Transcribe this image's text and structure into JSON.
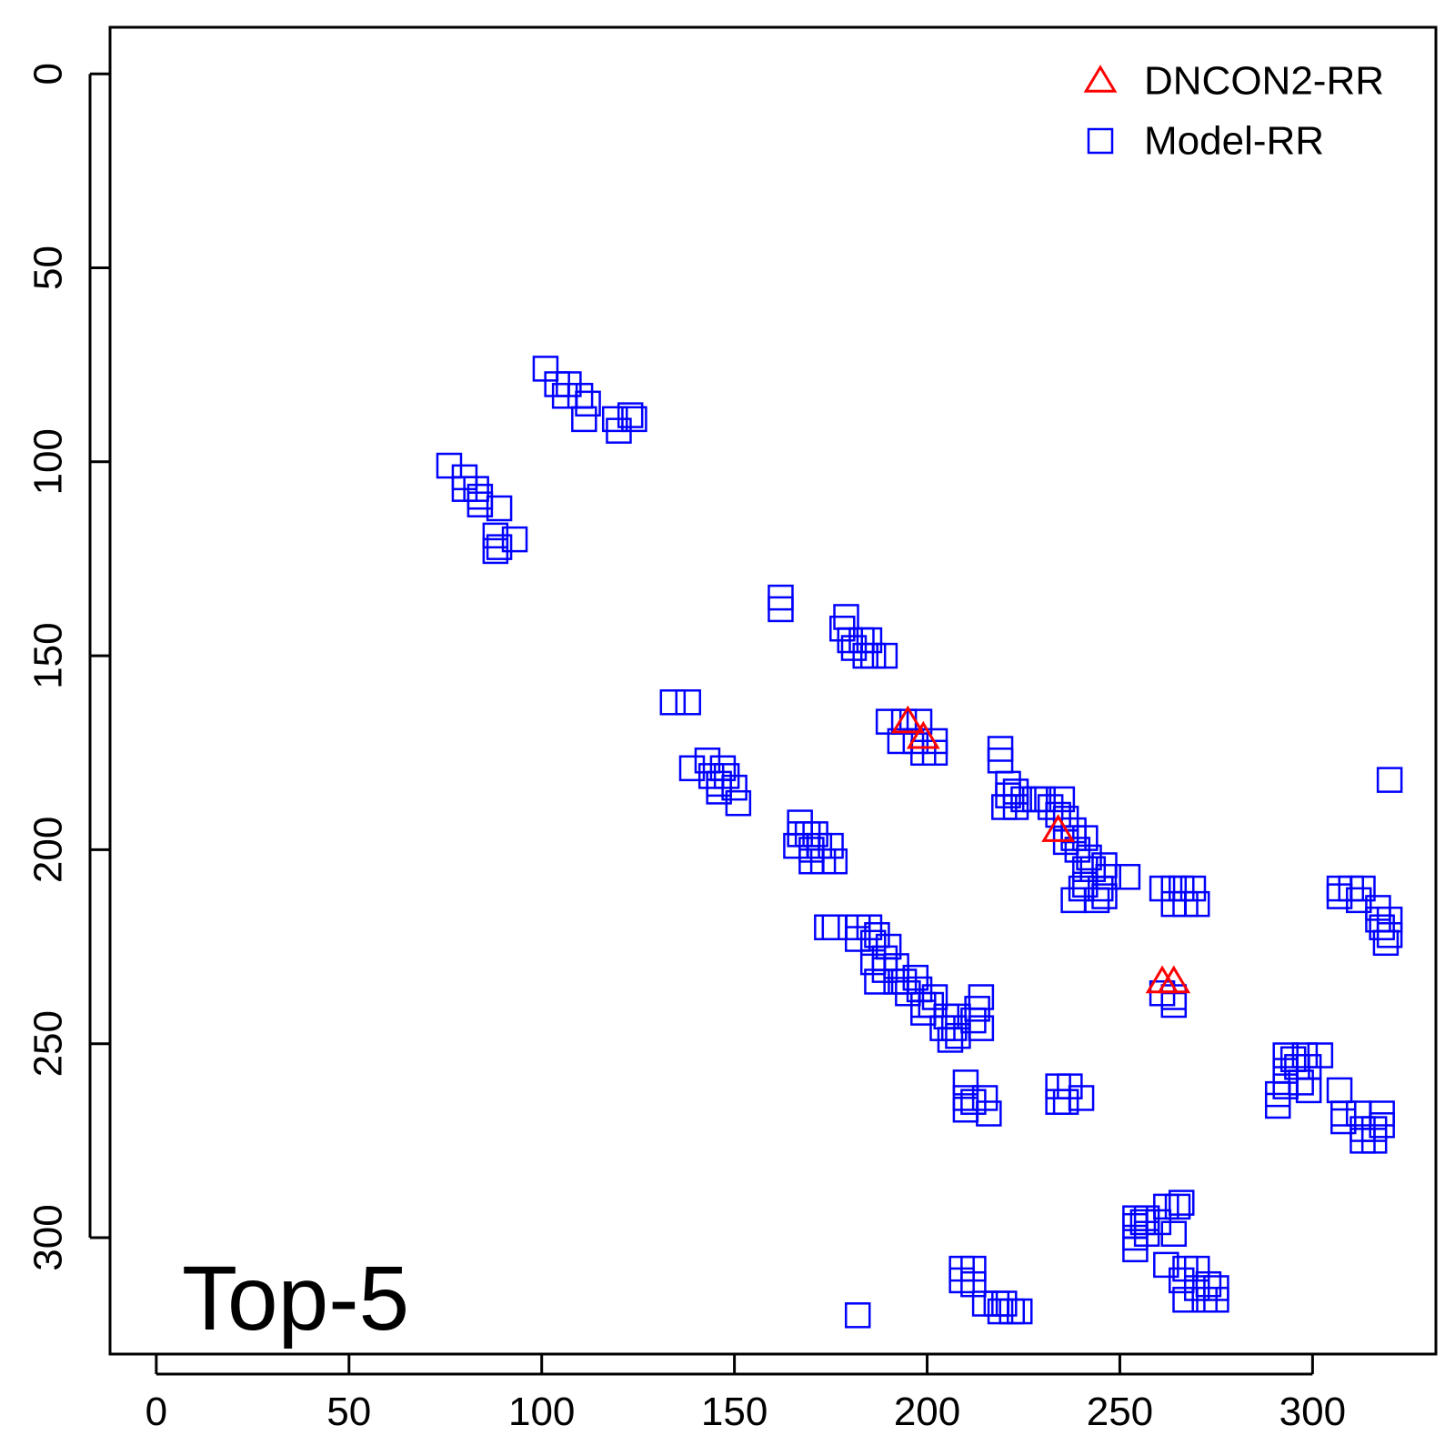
{
  "chart_data": {
    "type": "scatter",
    "title": "",
    "annotation": "Top-5",
    "xlabel": "",
    "ylabel": "",
    "xlim": [
      -12,
      332
    ],
    "ylim": [
      -12,
      330
    ],
    "y_axis_inverted": true,
    "x_ticks": [
      0,
      50,
      100,
      150,
      200,
      250,
      300
    ],
    "y_ticks": [
      0,
      50,
      100,
      150,
      200,
      250,
      300
    ],
    "grid": false,
    "legend_position": "top-right",
    "series": [
      {
        "name": "DNCON2-RR",
        "marker": "triangle-open",
        "color": "#ff0000",
        "points": [
          [
            195,
            167
          ],
          [
            199,
            171
          ],
          [
            234,
            195
          ],
          [
            261,
            234
          ],
          [
            264,
            234
          ]
        ]
      },
      {
        "name": "Model-RR",
        "marker": "square-open",
        "color": "#0000ff",
        "points": [
          [
            101,
            76
          ],
          [
            104,
            80
          ],
          [
            107,
            80
          ],
          [
            106,
            83
          ],
          [
            110,
            83
          ],
          [
            112,
            85
          ],
          [
            111,
            89
          ],
          [
            119,
            89
          ],
          [
            120,
            92
          ],
          [
            123,
            88
          ],
          [
            124,
            89
          ],
          [
            76,
            101
          ],
          [
            80,
            104
          ],
          [
            80,
            107
          ],
          [
            83,
            107
          ],
          [
            84,
            109
          ],
          [
            84,
            111
          ],
          [
            89,
            112
          ],
          [
            88,
            119
          ],
          [
            88,
            123
          ],
          [
            89,
            122
          ],
          [
            93,
            120
          ],
          [
            162,
            135
          ],
          [
            162,
            138
          ],
          [
            179,
            140
          ],
          [
            178,
            143
          ],
          [
            180,
            146
          ],
          [
            183,
            146
          ],
          [
            181,
            148
          ],
          [
            185,
            146
          ],
          [
            184,
            150
          ],
          [
            186,
            150
          ],
          [
            189,
            150
          ],
          [
            134,
            162
          ],
          [
            138,
            162
          ],
          [
            190,
            167
          ],
          [
            194,
            167
          ],
          [
            198,
            167
          ],
          [
            193,
            172
          ],
          [
            197,
            172
          ],
          [
            199,
            175
          ],
          [
            202,
            172
          ],
          [
            202,
            175
          ],
          [
            139,
            179
          ],
          [
            143,
            177
          ],
          [
            144,
            181
          ],
          [
            146,
            183
          ],
          [
            147,
            179
          ],
          [
            146,
            185
          ],
          [
            148,
            181
          ],
          [
            150,
            184
          ],
          [
            151,
            188
          ],
          [
            167,
            193
          ],
          [
            167,
            196
          ],
          [
            166,
            199
          ],
          [
            169,
            196
          ],
          [
            170,
            200
          ],
          [
            170,
            203
          ],
          [
            171,
            196
          ],
          [
            172,
            199
          ],
          [
            173,
            203
          ],
          [
            175,
            199
          ],
          [
            176,
            203
          ],
          [
            174,
            220
          ],
          [
            176,
            220
          ],
          [
            182,
            220
          ],
          [
            182,
            223
          ],
          [
            185,
            220
          ],
          [
            186,
            224
          ],
          [
            187,
            222
          ],
          [
            186,
            229
          ],
          [
            189,
            228
          ],
          [
            187,
            234
          ],
          [
            189,
            231
          ],
          [
            190,
            225
          ],
          [
            192,
            230
          ],
          [
            192,
            234
          ],
          [
            194,
            234
          ],
          [
            195,
            237
          ],
          [
            197,
            233
          ],
          [
            198,
            236
          ],
          [
            199,
            240
          ],
          [
            199,
            242
          ],
          [
            201,
            240
          ],
          [
            202,
            238
          ],
          [
            205,
            243
          ],
          [
            204,
            246
          ],
          [
            207,
            246
          ],
          [
            208,
            243
          ],
          [
            206,
            249
          ],
          [
            208,
            248
          ],
          [
            212,
            244
          ],
          [
            213,
            241
          ],
          [
            214,
            238
          ],
          [
            214,
            246
          ],
          [
            219,
            174
          ],
          [
            219,
            177
          ],
          [
            221,
            183
          ],
          [
            221,
            186
          ],
          [
            220,
            189
          ],
          [
            223,
            185
          ],
          [
            223,
            189
          ],
          [
            225,
            187
          ],
          [
            228,
            187
          ],
          [
            230,
            187
          ],
          [
            232,
            189
          ],
          [
            235,
            187
          ],
          [
            234,
            191
          ],
          [
            236,
            192
          ],
          [
            238,
            195
          ],
          [
            236,
            198
          ],
          [
            238,
            197
          ],
          [
            239,
            200
          ],
          [
            241,
            197
          ],
          [
            242,
            202
          ],
          [
            241,
            205
          ],
          [
            243,
            205
          ],
          [
            246,
            204
          ],
          [
            247,
            207
          ],
          [
            245,
            210
          ],
          [
            246,
            212
          ],
          [
            252,
            207
          ],
          [
            240,
            210
          ],
          [
            238,
            213
          ],
          [
            244,
            213
          ],
          [
            241,
            209
          ],
          [
            261,
            210
          ],
          [
            264,
            210
          ],
          [
            266,
            210
          ],
          [
            264,
            214
          ],
          [
            267,
            214
          ],
          [
            269,
            210
          ],
          [
            270,
            214
          ],
          [
            261,
            237
          ],
          [
            264,
            240
          ],
          [
            264,
            238
          ],
          [
            210,
            260
          ],
          [
            210,
            264
          ],
          [
            210,
            267
          ],
          [
            212,
            265
          ],
          [
            215,
            264
          ],
          [
            216,
            268
          ],
          [
            234,
            261
          ],
          [
            234,
            265
          ],
          [
            237,
            261
          ],
          [
            240,
            264
          ],
          [
            236,
            265
          ],
          [
            320,
            182
          ],
          [
            307,
            210
          ],
          [
            310,
            210
          ],
          [
            313,
            210
          ],
          [
            312,
            213
          ],
          [
            307,
            212
          ],
          [
            317,
            215
          ],
          [
            318,
            220
          ],
          [
            320,
            218
          ],
          [
            320,
            222
          ],
          [
            317,
            218
          ],
          [
            319,
            224
          ],
          [
            293,
            253
          ],
          [
            293,
            257
          ],
          [
            293,
            261
          ],
          [
            291,
            263
          ],
          [
            291,
            266
          ],
          [
            295,
            254
          ],
          [
            296,
            256
          ],
          [
            297,
            260
          ],
          [
            299,
            256
          ],
          [
            299,
            262
          ],
          [
            298,
            253
          ],
          [
            302,
            253
          ],
          [
            307,
            262
          ],
          [
            308,
            268
          ],
          [
            308,
            270
          ],
          [
            312,
            268
          ],
          [
            313,
            272
          ],
          [
            313,
            275
          ],
          [
            316,
            272
          ],
          [
            316,
            275
          ],
          [
            318,
            271
          ],
          [
            318,
            268
          ],
          [
            254,
            295
          ],
          [
            254,
            297
          ],
          [
            256,
            296
          ],
          [
            257,
            295
          ],
          [
            257,
            299
          ],
          [
            254,
            300
          ],
          [
            254,
            303
          ],
          [
            260,
            296
          ],
          [
            262,
            292
          ],
          [
            265,
            292
          ],
          [
            266,
            291
          ],
          [
            264,
            299
          ],
          [
            262,
            307
          ],
          [
            266,
            311
          ],
          [
            267,
            308
          ],
          [
            267,
            316
          ],
          [
            270,
            313
          ],
          [
            270,
            308
          ],
          [
            272,
            316
          ],
          [
            273,
            312
          ],
          [
            275,
            316
          ],
          [
            275,
            313
          ],
          [
            209,
            308
          ],
          [
            212,
            308
          ],
          [
            209,
            311
          ],
          [
            212,
            312
          ],
          [
            215,
            317
          ],
          [
            218,
            317
          ],
          [
            220,
            317
          ],
          [
            219,
            319
          ],
          [
            222,
            319
          ],
          [
            224,
            319
          ],
          [
            182,
            320
          ]
        ]
      }
    ]
  }
}
